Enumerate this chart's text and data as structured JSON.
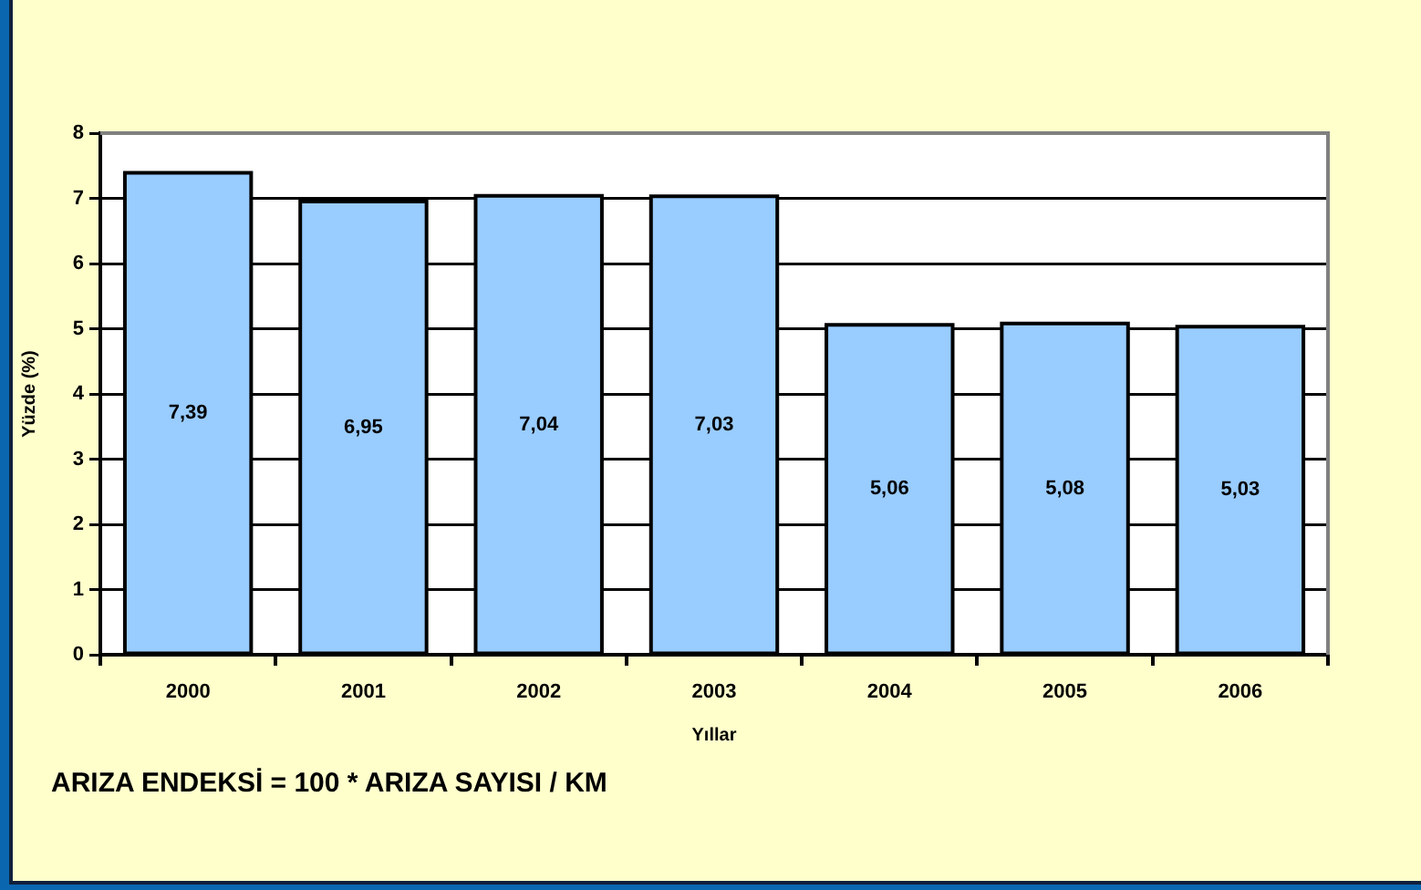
{
  "chart_data": {
    "type": "bar",
    "xlabel": "Yıllar",
    "ylabel": "Yüzde (%)",
    "annotations": [
      "ARIZA ENDEKSİ = 100 * ARIZA SAYISI / KM"
    ],
    "categories": [
      "2000",
      "2001",
      "2002",
      "2003",
      "2004",
      "2005",
      "2006"
    ],
    "values": [
      7.39,
      6.95,
      7.04,
      7.03,
      5.06,
      5.08,
      5.03
    ],
    "value_labels": [
      "7,39",
      "6,95",
      "7,04",
      "7,03",
      "5,06",
      "5,08",
      "5,03"
    ],
    "color": "#99ccff",
    "ylim": [
      0,
      8
    ],
    "yticks": [
      0,
      1,
      2,
      3,
      4,
      5,
      6,
      7,
      8
    ],
    "grid": "y"
  }
}
